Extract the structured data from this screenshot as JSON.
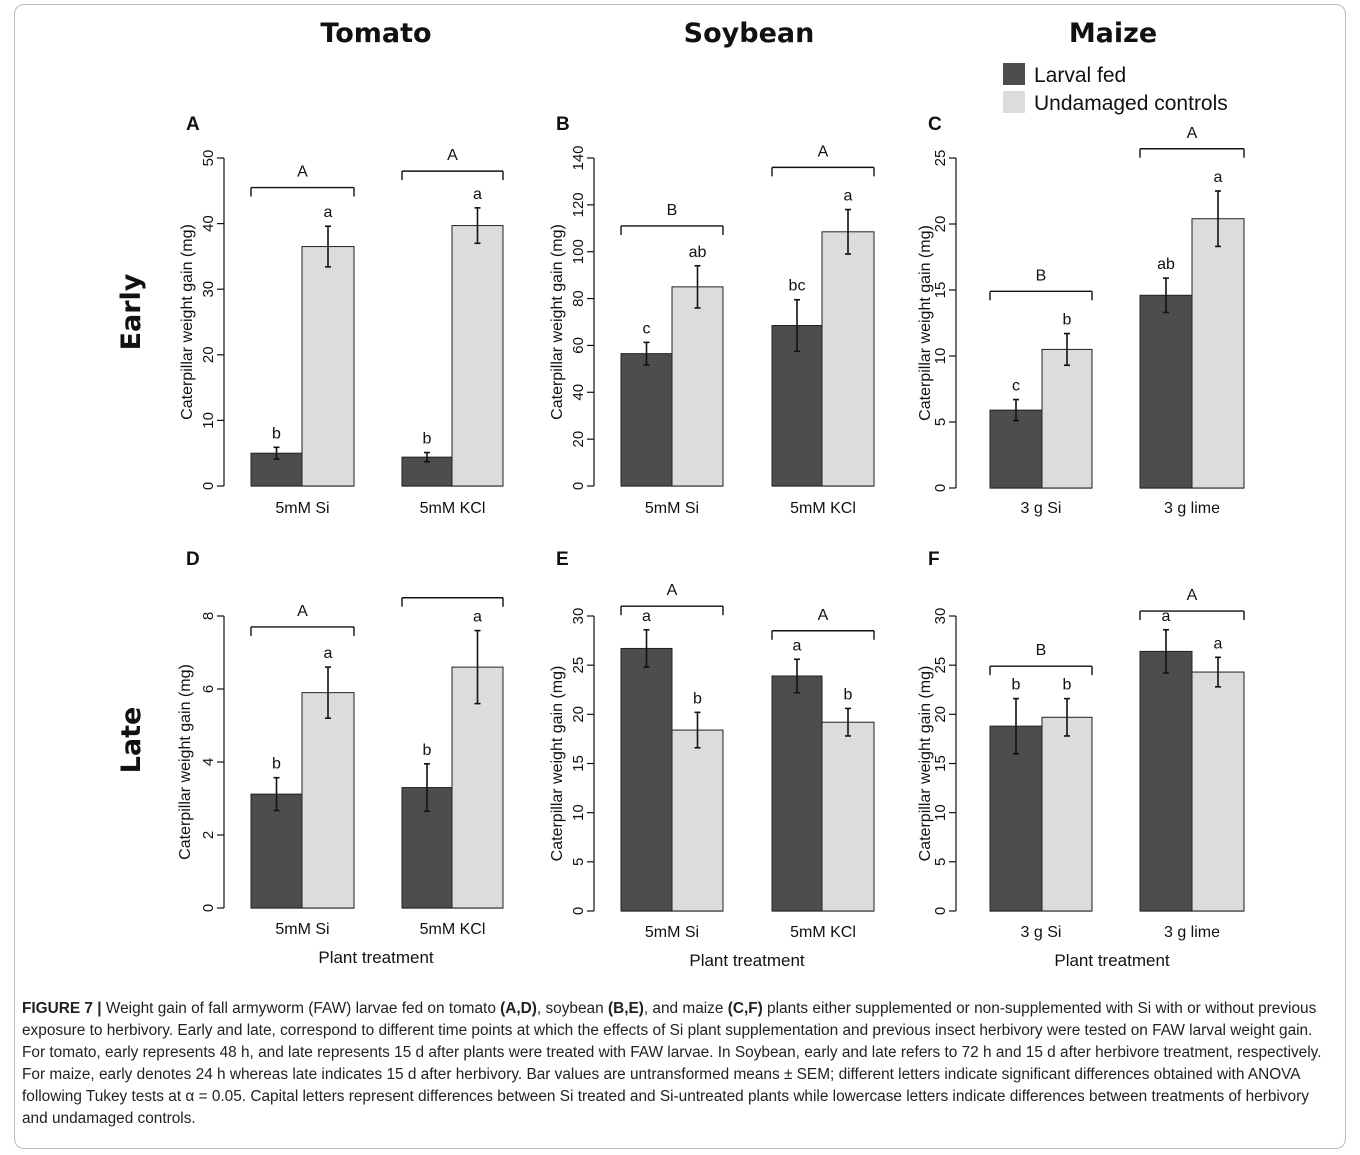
{
  "colors": {
    "larval_fed": "#4d4d4d",
    "undamaged": "#dcdcdc",
    "axis": "#111111"
  },
  "column_titles": [
    "Tomato",
    "Soybean",
    "Maize"
  ],
  "row_titles": [
    "Early",
    "Late"
  ],
  "legend": {
    "entries": [
      "Larval fed",
      "Undamaged controls"
    ]
  },
  "y_axis_label": "Caterpillar weight gain (mg)",
  "x_axis_label": "Plant treatment",
  "caption": {
    "figure_label": "FIGURE 7 |",
    "parts": [
      {
        "t": " Weight gain of fall armyworm (FAW) larvae fed on tomato ",
        "b": false
      },
      {
        "t": "(A,D)",
        "b": true
      },
      {
        "t": ", soybean ",
        "b": false
      },
      {
        "t": "(B,E)",
        "b": true
      },
      {
        "t": ", and maize ",
        "b": false
      },
      {
        "t": "(C,F)",
        "b": true
      },
      {
        "t": " plants either supplemented or non-supplemented with Si with or without previous exposure to herbivory. Early and late, correspond to different time points at which the effects of Si plant supplementation and previous insect herbivory were tested on FAW larval weight gain. For tomato, early represents 48 h, and late represents 15 d after plants were treated with FAW larvae. In Soybean, early and late refers to 72 h and 15 d after herbivore treatment, respectively. For maize, early denotes 24 h whereas late indicates 15 d after herbivory. Bar values are untransformed means ± SEM; different letters indicate significant differences obtained with ANOVA following Tukey tests at α = 0.05. Capital letters represent differences between Si treated and Si-untreated plants while lowercase letters indicate differences between treatments of herbivory and undamaged controls.",
        "b": false
      }
    ]
  },
  "chart_data": [
    {
      "panel": "A",
      "type": "bar",
      "ylim": [
        0,
        50
      ],
      "yticks": [
        0,
        10,
        20,
        30,
        40,
        50
      ],
      "categories": [
        "5mM Si",
        "5mM KCl"
      ],
      "series": [
        {
          "name": "Larval fed",
          "values": [
            5.0,
            4.4
          ],
          "errors": [
            0.9,
            0.7
          ],
          "letters": [
            "b",
            "b"
          ]
        },
        {
          "name": "Undamaged controls",
          "values": [
            36.5,
            39.7
          ],
          "errors": [
            3.1,
            2.7
          ],
          "letters": [
            "a",
            "a"
          ]
        }
      ],
      "group_letters": [
        "A",
        "A"
      ],
      "group_bracket_y": [
        45.5,
        48.0
      ]
    },
    {
      "panel": "B",
      "type": "bar",
      "ylim": [
        0,
        140
      ],
      "yticks": [
        0,
        20,
        40,
        60,
        80,
        100,
        120,
        140
      ],
      "categories": [
        "5mM Si",
        "5mM KCl"
      ],
      "series": [
        {
          "name": "Larval fed",
          "values": [
            56.5,
            68.5
          ],
          "errors": [
            4.8,
            11.0
          ],
          "letters": [
            "c",
            "bc"
          ]
        },
        {
          "name": "Undamaged controls",
          "values": [
            85.0,
            108.5
          ],
          "errors": [
            9.0,
            9.5
          ],
          "letters": [
            "ab",
            "a"
          ]
        }
      ],
      "group_letters": [
        "B",
        "A"
      ],
      "group_bracket_y": [
        111.0,
        136.0
      ]
    },
    {
      "panel": "C",
      "type": "bar",
      "ylim": [
        0,
        25
      ],
      "yticks": [
        0,
        5,
        10,
        15,
        20,
        25
      ],
      "categories": [
        "3 g Si",
        "3 g lime"
      ],
      "series": [
        {
          "name": "Larval fed",
          "values": [
            5.9,
            14.6
          ],
          "errors": [
            0.8,
            1.3
          ],
          "letters": [
            "c",
            "ab"
          ]
        },
        {
          "name": "Undamaged controls",
          "values": [
            10.5,
            20.4
          ],
          "errors": [
            1.2,
            2.1
          ],
          "letters": [
            "b",
            "a"
          ]
        }
      ],
      "group_letters": [
        "B",
        "A"
      ],
      "group_bracket_y": [
        14.9,
        25.7
      ]
    },
    {
      "panel": "D",
      "type": "bar",
      "ylim": [
        0,
        8
      ],
      "yticks": [
        0,
        2,
        4,
        6,
        8
      ],
      "categories": [
        "5mM Si",
        "5mM KCl"
      ],
      "series": [
        {
          "name": "Larval fed",
          "values": [
            3.12,
            3.3
          ],
          "errors": [
            0.45,
            0.65
          ],
          "letters": [
            "b",
            "b"
          ]
        },
        {
          "name": "Undamaged controls",
          "values": [
            5.9,
            6.6
          ],
          "errors": [
            0.7,
            1.0
          ],
          "letters": [
            "a",
            "a"
          ]
        }
      ],
      "group_letters": [
        "A",
        ""
      ],
      "group_bracket_y": [
        7.7,
        8.5
      ]
    },
    {
      "panel": "E",
      "type": "bar",
      "ylim": [
        0,
        30
      ],
      "yticks": [
        0,
        5,
        10,
        15,
        20,
        25,
        30
      ],
      "categories": [
        "5mM Si",
        "5mM KCl"
      ],
      "series": [
        {
          "name": "Larval fed",
          "values": [
            26.7,
            23.9
          ],
          "errors": [
            1.9,
            1.7
          ],
          "letters": [
            "a",
            "a"
          ]
        },
        {
          "name": "Undamaged controls",
          "values": [
            18.4,
            19.2
          ],
          "errors": [
            1.8,
            1.4
          ],
          "letters": [
            "b",
            "b"
          ]
        }
      ],
      "group_letters": [
        "A",
        "A"
      ],
      "group_bracket_y": [
        31.0,
        28.5
      ]
    },
    {
      "panel": "F",
      "type": "bar",
      "ylim": [
        0,
        30
      ],
      "yticks": [
        0,
        5,
        10,
        15,
        20,
        25,
        30
      ],
      "categories": [
        "3 g Si",
        "3 g lime"
      ],
      "series": [
        {
          "name": "Larval fed",
          "values": [
            18.8,
            26.4
          ],
          "errors": [
            2.8,
            2.2
          ],
          "letters": [
            "b",
            "a"
          ]
        },
        {
          "name": "Undamaged controls",
          "values": [
            19.7,
            24.3
          ],
          "errors": [
            1.9,
            1.5
          ],
          "letters": [
            "b",
            "a"
          ]
        }
      ],
      "group_letters": [
        "B",
        "A"
      ],
      "group_bracket_y": [
        24.9,
        30.5
      ]
    }
  ]
}
